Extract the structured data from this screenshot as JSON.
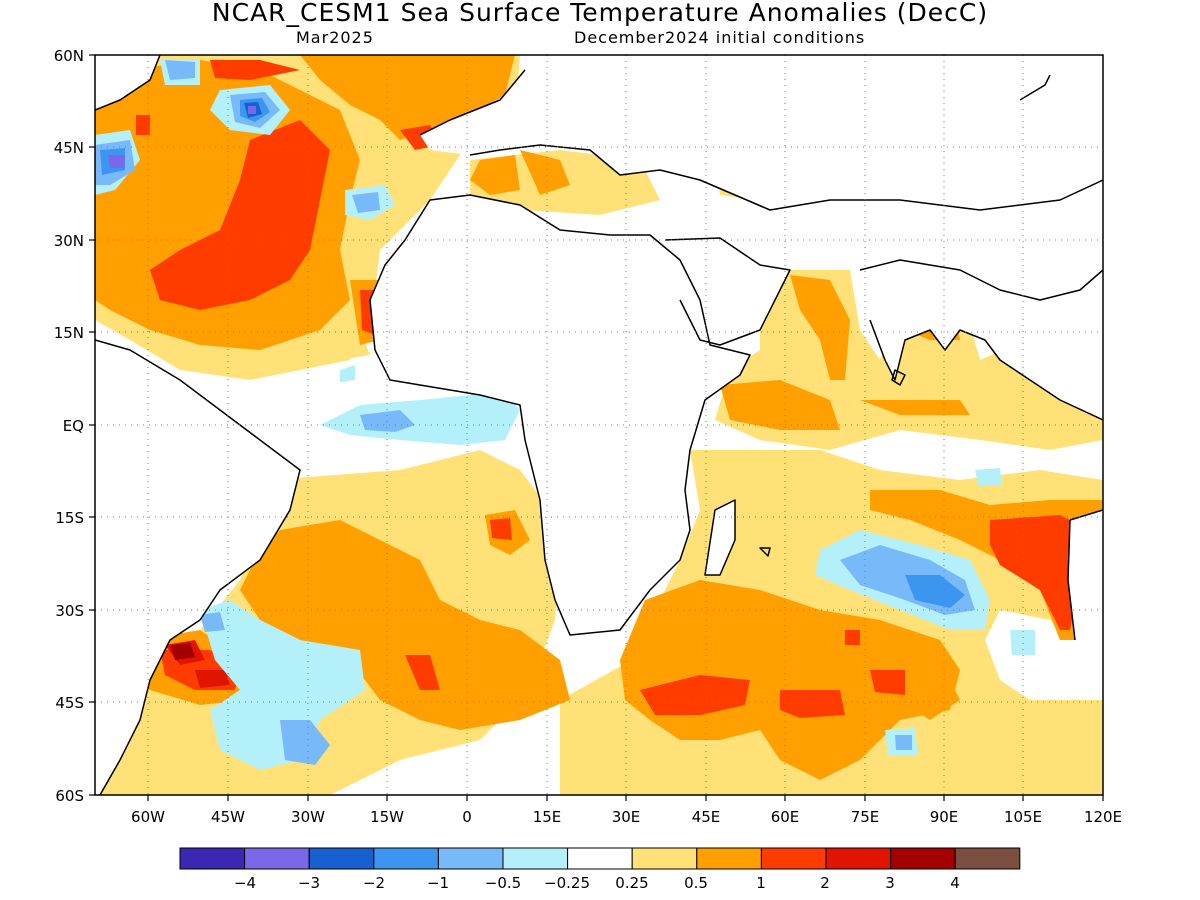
{
  "header": {
    "title": "NCAR_CESM1 Sea Surface Temperature Anomalies (DecC)",
    "valid_month": "Mar2025",
    "init": "December2024 initial conditions"
  },
  "axes": {
    "lat_ticks": [
      "60N",
      "45N",
      "30N",
      "15N",
      "EQ",
      "15S",
      "30S",
      "45S",
      "60S"
    ],
    "lon_ticks": [
      "60W",
      "45W",
      "30W",
      "15W",
      "0",
      "15E",
      "30E",
      "45E",
      "60E",
      "75E",
      "90E",
      "105E",
      "120E"
    ]
  },
  "colorbar": {
    "colors": [
      "#3a28b4",
      "#7b68e8",
      "#1660d2",
      "#3c96f0",
      "#78b9fa",
      "#b4f0fa",
      "#ffffff",
      "#ffe178",
      "#ffa000",
      "#ff3c00",
      "#e11400",
      "#a50000",
      "#7a4f40"
    ],
    "labels": [
      "−4",
      "−3",
      "−2",
      "−1",
      "−0.5",
      "−0.25",
      "0.25",
      "0.5",
      "1",
      "2",
      "3",
      "4"
    ]
  },
  "legend_colors": {
    "warm_light": "#ffe178",
    "warm_mid": "#ffa000",
    "warm_strong": "#ff3c00",
    "warm_vstrong": "#e11400",
    "warm_extreme": "#a50000",
    "cool_light": "#b4f0fa",
    "cool_mid": "#78b9fa",
    "cool_strong": "#3c96f0",
    "cool_vstrong": "#1660d2",
    "cool_extreme": "#7b68e8"
  }
}
